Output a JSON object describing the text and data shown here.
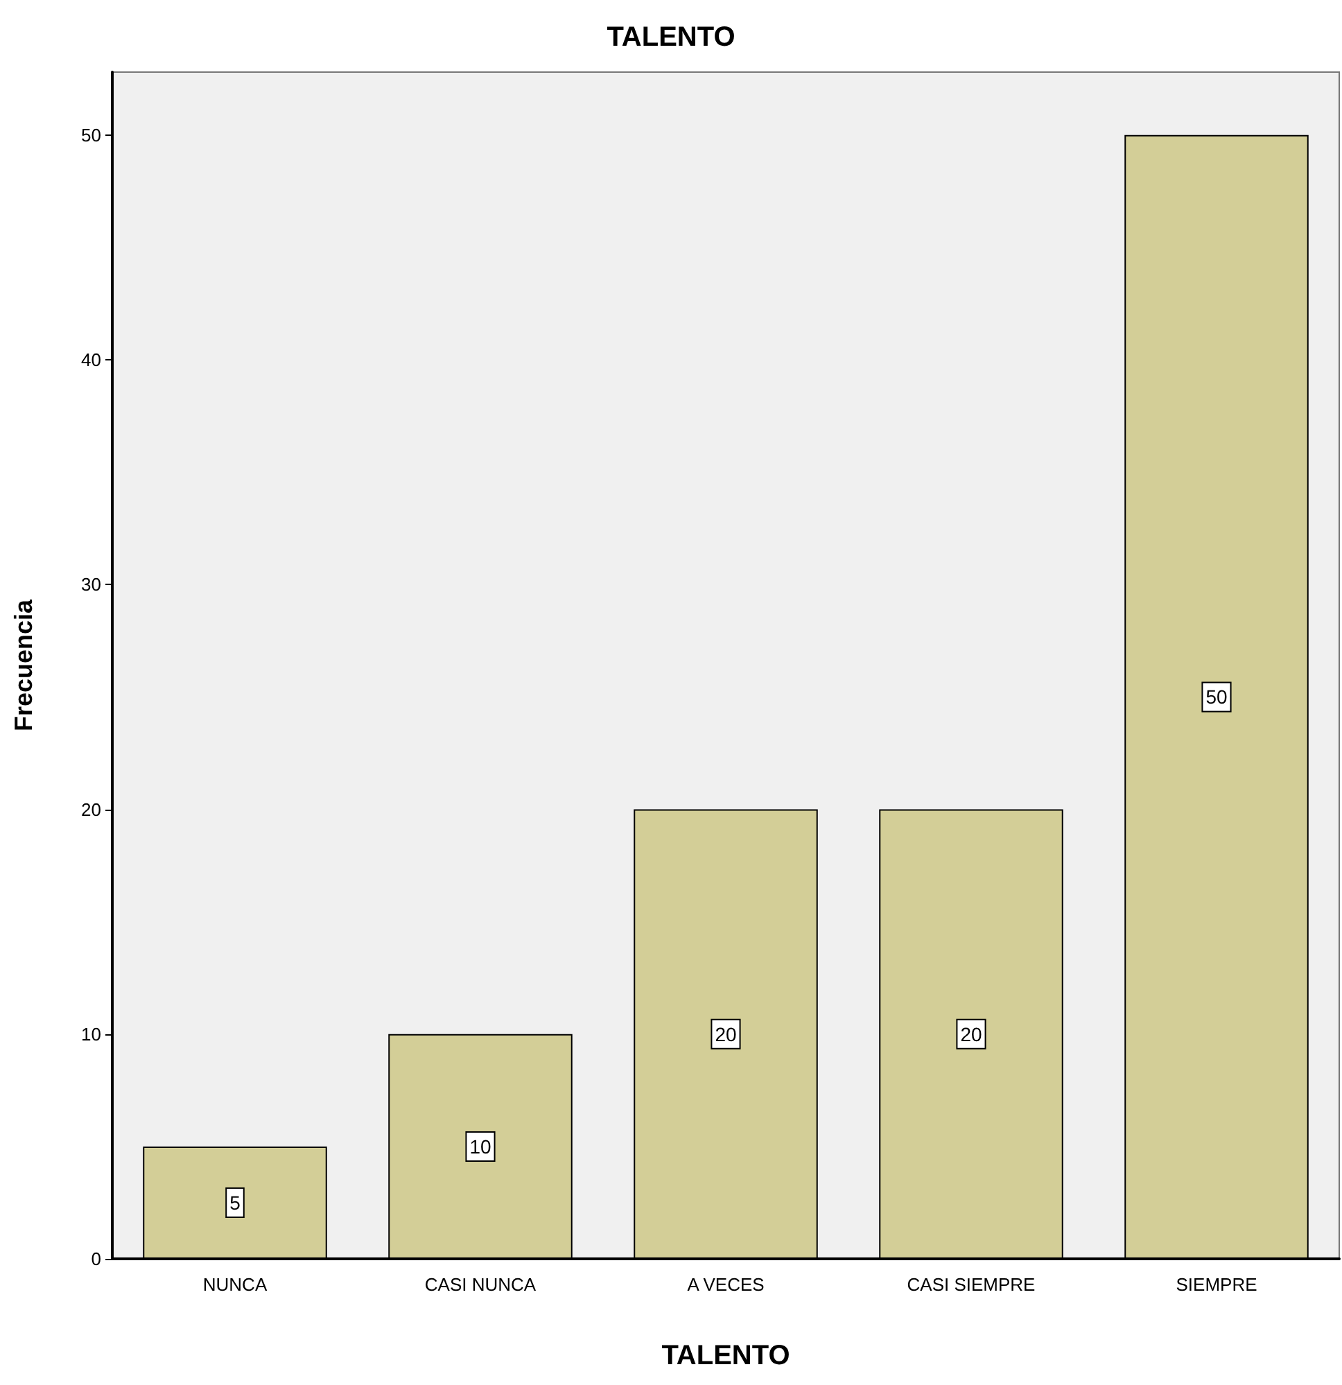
{
  "chart_data": {
    "type": "bar",
    "title": "TALENTO",
    "xlabel": "TALENTO",
    "ylabel": "Frecuencia",
    "categories": [
      "NUNCA",
      "CASI NUNCA",
      "A VECES",
      "CASI SIEMPRE",
      "SIEMPRE"
    ],
    "values": [
      5,
      10,
      20,
      20,
      50
    ],
    "color": "#d3ce97",
    "ylim": [
      0,
      52.8
    ],
    "yticks": [
      0,
      10,
      20,
      30,
      40,
      50
    ],
    "grid": false,
    "data_labels": true
  }
}
